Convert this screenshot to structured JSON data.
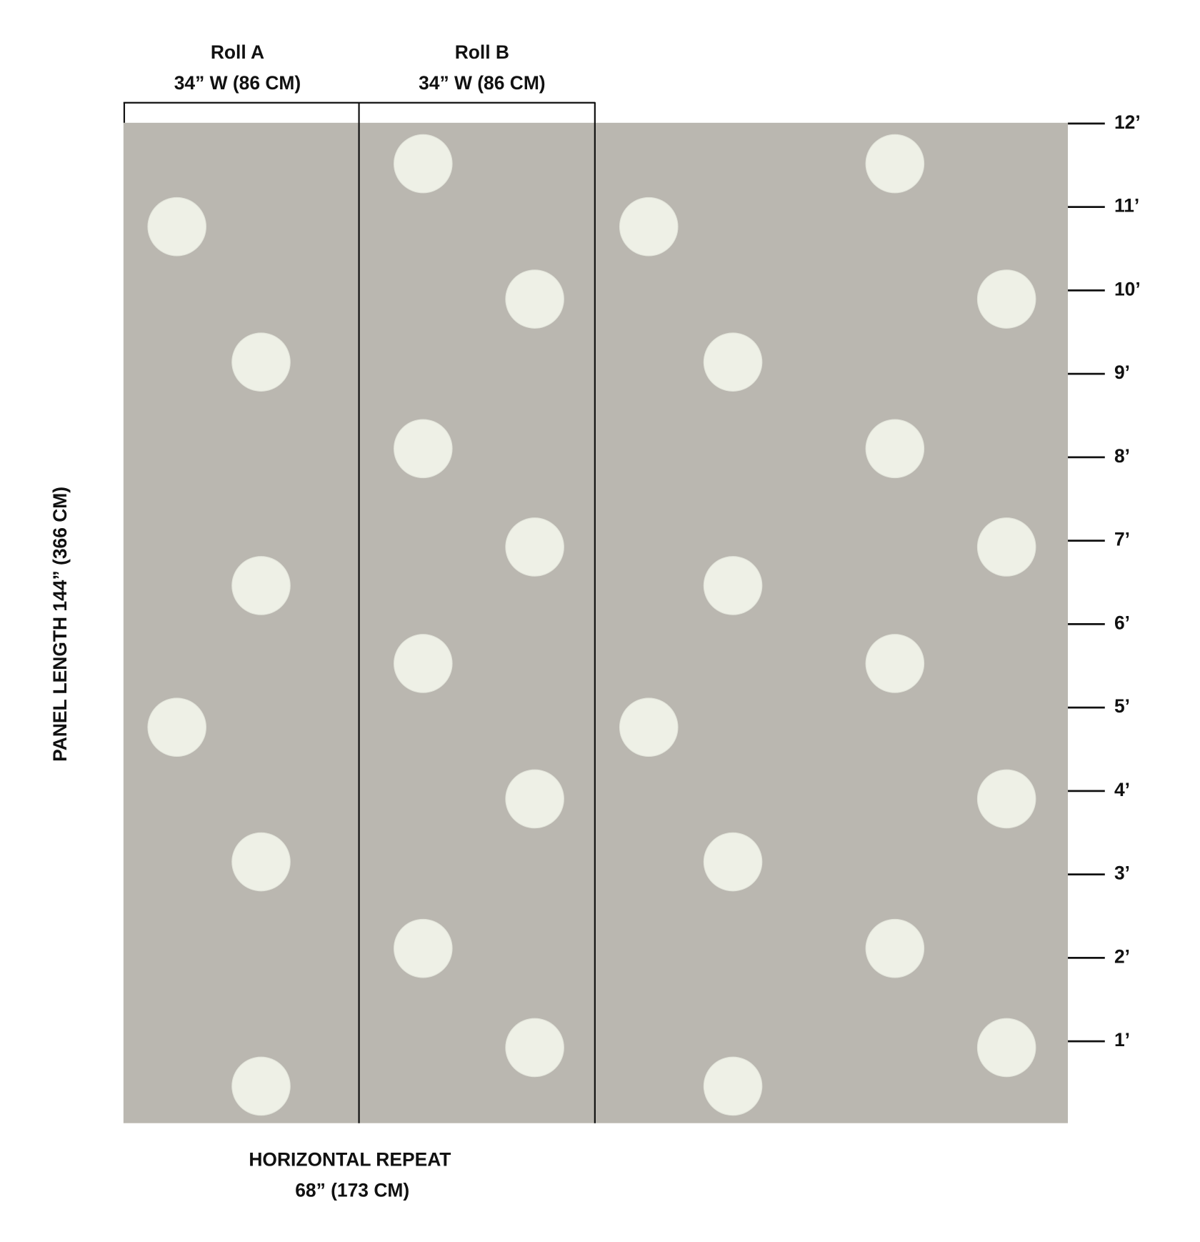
{
  "rolls": [
    {
      "name": "Roll A",
      "width": "34” W (86 CM)"
    },
    {
      "name": "Roll B",
      "width": "34” W (86 CM)"
    }
  ],
  "ruler": [
    "12’",
    "11’",
    "10’",
    "9’",
    "8’",
    "7’",
    "6’",
    "5’",
    "4’",
    "3’",
    "2’",
    "1’"
  ],
  "panel_length": "PANEL LENGTH 144” (366 CM)",
  "horizontal_repeat": {
    "title": "HORIZONTAL REPEAT",
    "size": "68” (173 CM)"
  }
}
